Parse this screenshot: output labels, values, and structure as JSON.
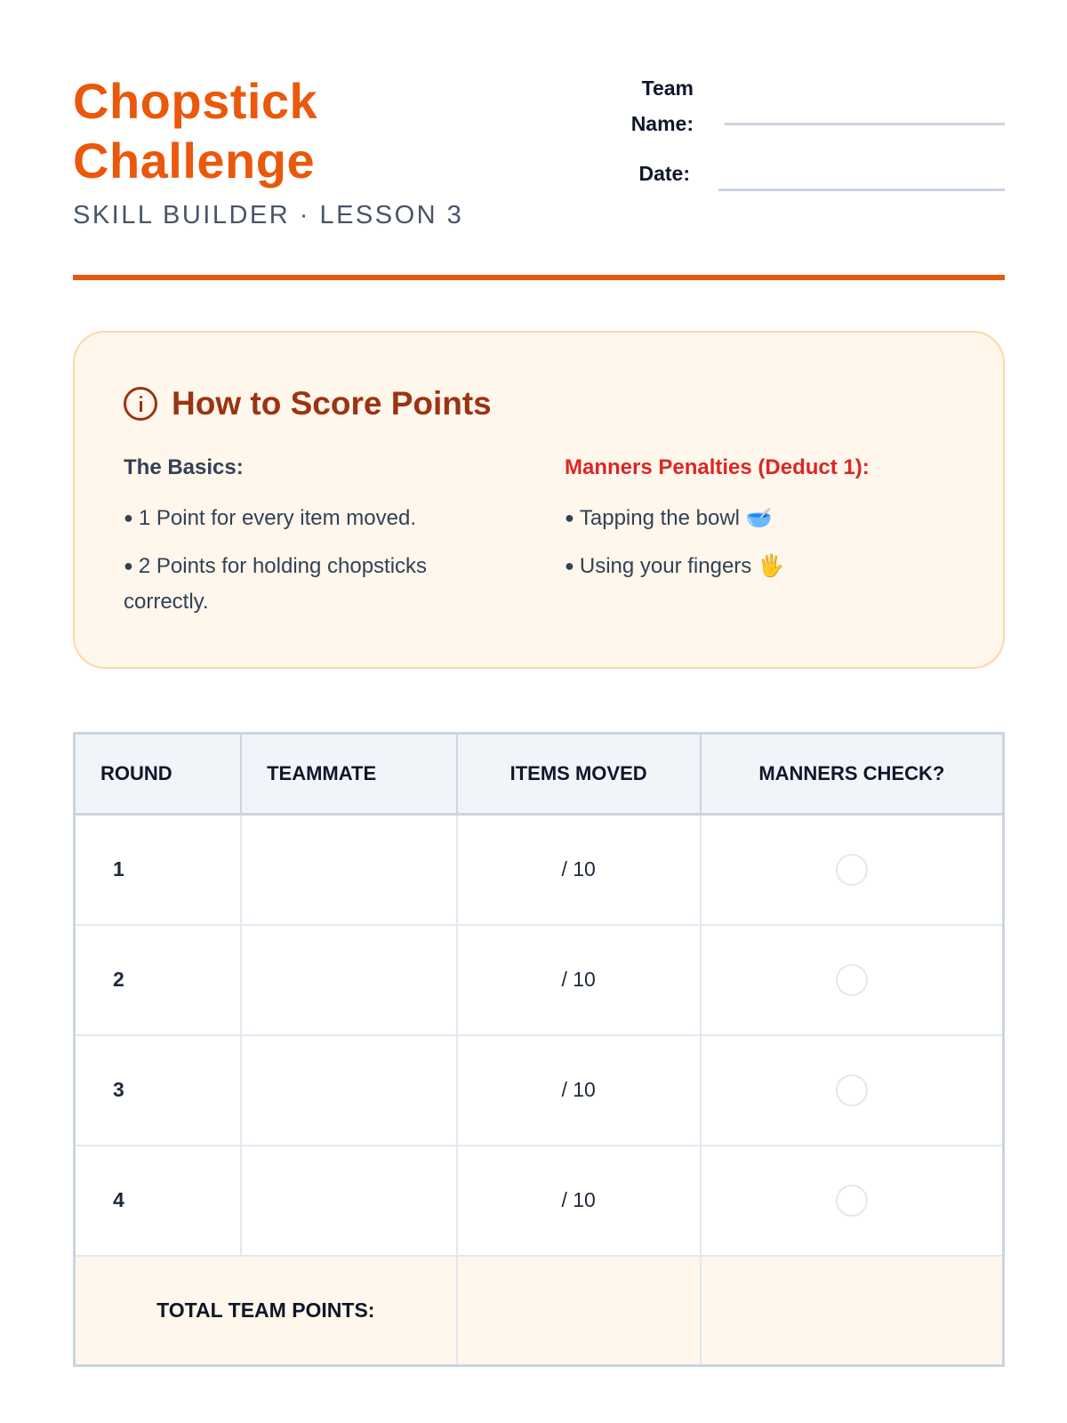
{
  "header": {
    "title_line1": "Chopstick",
    "title_line2": "Challenge",
    "subtitle": "SKILL BUILDER · LESSON 3",
    "team_label_line1": "Team",
    "team_label_line2": "Name:",
    "date_label": "Date:",
    "accent_color": "#ea580c"
  },
  "scoring": {
    "title": "How to Score Points",
    "icon": "info-icon",
    "basics": {
      "heading": "The Basics:",
      "items": [
        "1 Point for every item moved.",
        "2 Points for holding chopsticks correctly."
      ]
    },
    "penalties": {
      "heading": "Manners Penalties (Deduct 1):",
      "items": [
        {
          "text": "Tapping the bowl",
          "emoji": "🥣"
        },
        {
          "text": "Using your fingers",
          "emoji": "🖐️"
        }
      ]
    }
  },
  "table": {
    "headers": [
      "ROUND",
      "TEAMMATE",
      "ITEMS MOVED",
      "MANNERS CHECK?"
    ],
    "rows": [
      {
        "round": "1",
        "teammate": "",
        "items": "/ 10",
        "manners_checked": false
      },
      {
        "round": "2",
        "teammate": "",
        "items": "/ 10",
        "manners_checked": false
      },
      {
        "round": "3",
        "teammate": "",
        "items": "/ 10",
        "manners_checked": false
      },
      {
        "round": "4",
        "teammate": "",
        "items": "/ 10",
        "manners_checked": false
      }
    ],
    "total_label": "TOTAL TEAM POINTS:"
  }
}
